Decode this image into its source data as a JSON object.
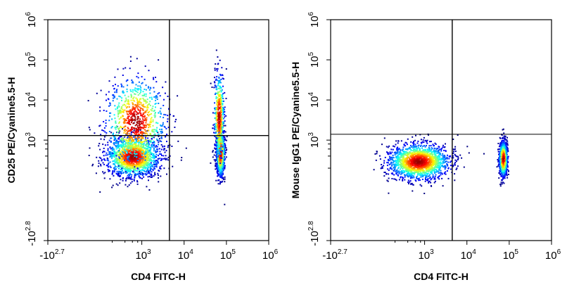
{
  "chart_data": [
    {
      "type": "scatter",
      "subtype": "flow-cytometry-density-dot-plot",
      "xlabel": "CD4 FITC-H",
      "ylabel": "CD25 PE/Cyanine5.5-H",
      "x_scale": "biexponential",
      "y_scale": "biexponential",
      "xlim": [
        -501,
        1000000
      ],
      "ylim": [
        -631,
        1000000
      ],
      "x_ticks": [
        {
          "base": "-10",
          "exp": "2.7",
          "value": -501
        },
        {
          "base": "10",
          "exp": "3",
          "value": 1000
        },
        {
          "base": "10",
          "exp": "4",
          "value": 10000
        },
        {
          "base": "10",
          "exp": "5",
          "value": 100000
        },
        {
          "base": "10",
          "exp": "6",
          "value": 1000000
        }
      ],
      "y_ticks": [
        {
          "base": "-10",
          "exp": "2.8",
          "value": -631
        },
        {
          "base": "10",
          "exp": "3",
          "value": 1000
        },
        {
          "base": "10",
          "exp": "4",
          "value": 10000
        },
        {
          "base": "10",
          "exp": "5",
          "value": 100000
        },
        {
          "base": "10",
          "exp": "6",
          "value": 1000000
        }
      ],
      "gate": {
        "x": 4500,
        "y": 1300
      },
      "populations": [
        {
          "name": "CD4- CD25 low",
          "x_center": 600,
          "y_center": 400,
          "count": 1500,
          "spread_x": 0.32,
          "spread_y": 0.25
        },
        {
          "name": "CD4- CD25 smear",
          "x_center": 700,
          "y_center": 3000,
          "count": 900,
          "spread_x": 0.36,
          "spread_y": 0.55
        },
        {
          "name": "CD4+ CD25 low",
          "x_center": 70000,
          "y_center": 500,
          "count": 900,
          "spread_x": 0.05,
          "spread_y": 0.3
        },
        {
          "name": "CD4+ CD25 high",
          "x_center": 65000,
          "y_center": 4000,
          "count": 450,
          "spread_x": 0.06,
          "spread_y": 0.55
        }
      ]
    },
    {
      "type": "scatter",
      "subtype": "flow-cytometry-density-dot-plot",
      "xlabel": "CD4 FITC-H",
      "ylabel": "Mouse IgG1 PE/Cyanine5.5-H",
      "x_scale": "biexponential",
      "y_scale": "biexponential",
      "xlim": [
        -501,
        1000000
      ],
      "ylim": [
        -631,
        1000000
      ],
      "x_ticks": [
        {
          "base": "-10",
          "exp": "2.7",
          "value": -501
        },
        {
          "base": "10",
          "exp": "3",
          "value": 1000
        },
        {
          "base": "10",
          "exp": "4",
          "value": 10000
        },
        {
          "base": "10",
          "exp": "5",
          "value": 100000
        },
        {
          "base": "10",
          "exp": "6",
          "value": 1000000
        }
      ],
      "y_ticks": [
        {
          "base": "-10",
          "exp": "2.8",
          "value": -631
        },
        {
          "base": "10",
          "exp": "3",
          "value": 1000
        },
        {
          "base": "10",
          "exp": "4",
          "value": 10000
        },
        {
          "base": "10",
          "exp": "5",
          "value": 100000
        },
        {
          "base": "10",
          "exp": "6",
          "value": 1000000
        }
      ],
      "gate": {
        "x": 4500,
        "y": 1400
      },
      "populations": [
        {
          "name": "CD4- isotype",
          "x_center": 700,
          "y_center": 300,
          "count": 1700,
          "spread_x": 0.36,
          "spread_y": 0.22
        },
        {
          "name": "CD4+ isotype",
          "x_center": 70000,
          "y_center": 350,
          "count": 900,
          "spread_x": 0.05,
          "spread_y": 0.22
        }
      ]
    }
  ]
}
